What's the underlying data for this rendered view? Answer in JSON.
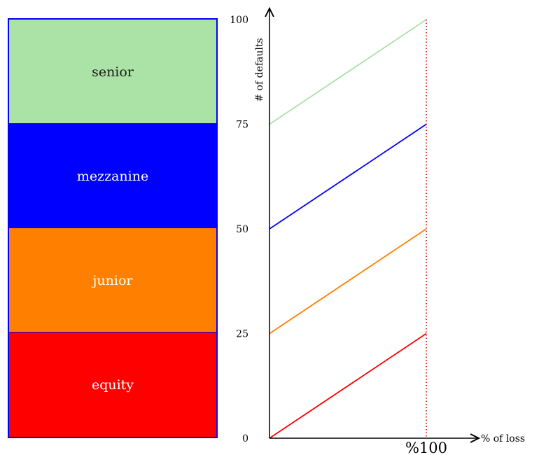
{
  "tranches": [
    {
      "label": "senior",
      "color": "#aae3a5",
      "text_color": "#1a1a1a"
    },
    {
      "label": "mezzanine",
      "color": "#0000ff",
      "text_color": "#ffffff"
    },
    {
      "label": "junior",
      "color": "#ff8000",
      "text_color": "#ffffff"
    },
    {
      "label": "equity",
      "color": "#ff0000",
      "text_color": "#ffffff"
    }
  ],
  "chart_data": {
    "type": "line",
    "ylabel": "# of defaults",
    "xlabel": "% of loss",
    "x_marker_label": "%100",
    "y_ticks": [
      "0",
      "25",
      "50",
      "75",
      "100"
    ],
    "ylim": [
      0,
      100
    ],
    "xlim": [
      0,
      100
    ],
    "series": [
      {
        "color": "#ff0000",
        "x": [
          0,
          100
        ],
        "y": [
          0,
          25
        ]
      },
      {
        "color": "#ff8000",
        "x": [
          0,
          100
        ],
        "y": [
          25,
          50
        ]
      },
      {
        "color": "#0000ff",
        "x": [
          0,
          100
        ],
        "y": [
          50,
          75
        ]
      },
      {
        "color": "#aae3a5",
        "x": [
          0,
          100
        ],
        "y": [
          75,
          100
        ]
      }
    ],
    "marker_line": {
      "x": 100,
      "color": "#cc0000",
      "style": "dotted"
    }
  }
}
